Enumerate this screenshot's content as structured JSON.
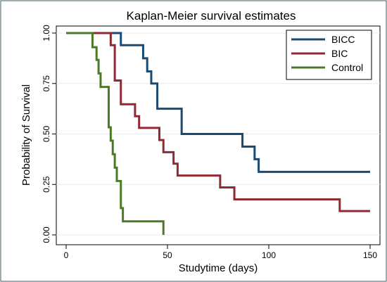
{
  "chart_data": {
    "type": "line",
    "step": true,
    "title": "Kaplan-Meier survival estimates",
    "xlabel": "Studytime (days)",
    "ylabel": "Probability of Survival",
    "xlim": [
      0,
      150
    ],
    "ylim": [
      0,
      1
    ],
    "xticks": [
      0,
      50,
      100,
      150
    ],
    "yticks": [
      0.0,
      0.25,
      0.5,
      0.75,
      1.0
    ],
    "xtick_labels": [
      "0",
      "50",
      "100",
      "150"
    ],
    "ytick_labels": [
      "0.00",
      "0.25",
      "0.50",
      "0.75",
      "1.00"
    ],
    "grid": "horizontal",
    "legend_position": "top-right",
    "series": [
      {
        "name": "BICC",
        "color": "#1a4a72",
        "x": [
          0,
          27,
          38,
          40,
          42,
          45,
          57,
          87,
          93,
          95,
          97,
          150
        ],
        "y": [
          1.0,
          0.94,
          0.875,
          0.81,
          0.75,
          0.625,
          0.5,
          0.4375,
          0.375,
          0.3125,
          0.3125,
          0.3125
        ]
      },
      {
        "name": "BIC",
        "color": "#8f2a33",
        "x": [
          0,
          22,
          24,
          27,
          34,
          36,
          46,
          48,
          53,
          55,
          57,
          76,
          83,
          135,
          150
        ],
        "y": [
          1.0,
          0.94,
          0.765,
          0.647,
          0.588,
          0.53,
          0.47,
          0.41,
          0.353,
          0.294,
          0.294,
          0.235,
          0.176,
          0.118,
          0.118
        ]
      },
      {
        "name": "Control",
        "color": "#4b7a25",
        "x": [
          0,
          13,
          15,
          16,
          17,
          21,
          22,
          23,
          24,
          25,
          27,
          28,
          48
        ],
        "y": [
          1.0,
          0.93,
          0.867,
          0.8,
          0.733,
          0.533,
          0.467,
          0.4,
          0.333,
          0.267,
          0.133,
          0.067,
          0.0
        ]
      }
    ]
  }
}
